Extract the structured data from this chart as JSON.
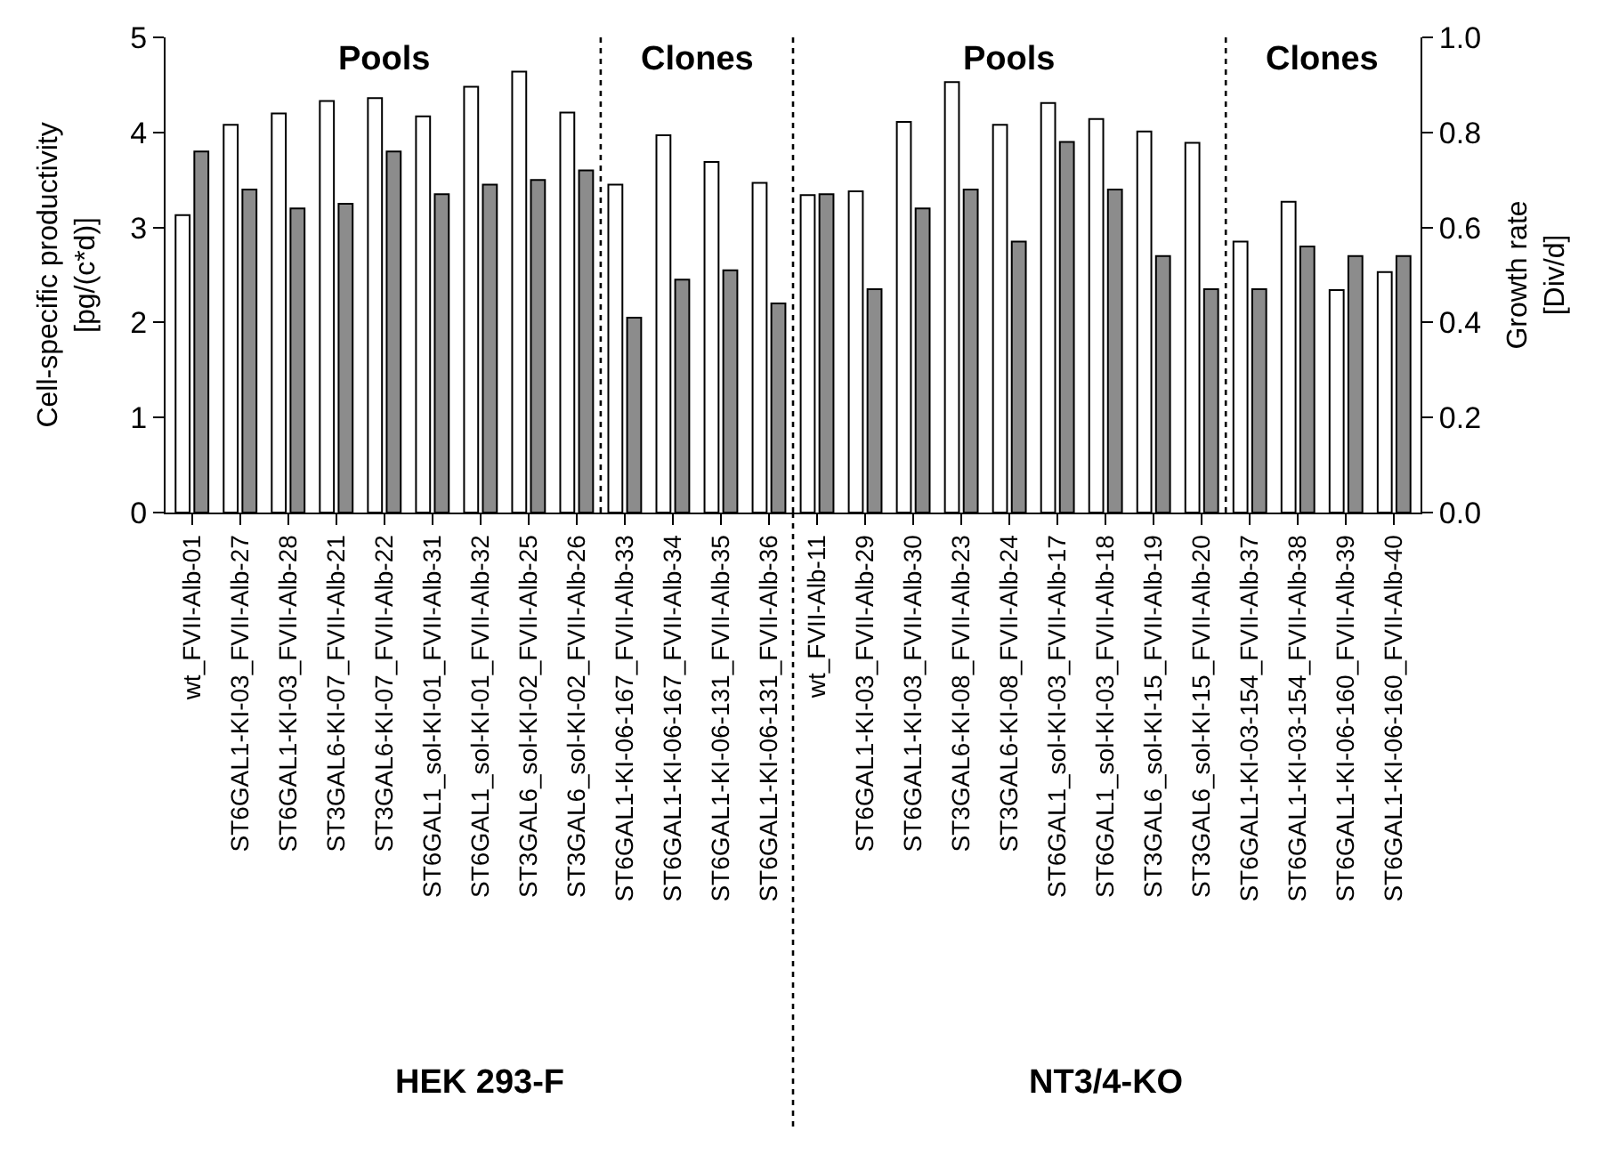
{
  "chart_data": {
    "type": "bar",
    "categories": [
      "wt_FVII-Alb-01",
      "ST6GAL1-KI-03_FVII-Alb-27",
      "ST6GAL1-KI-03_FVII-Alb-28",
      "ST3GAL6-KI-07_FVII-Alb-21",
      "ST3GAL6-KI-07_FVII-Alb-22",
      "ST6GAL1_sol-KI-01_FVII-Alb-31",
      "ST6GAL1_sol-KI-01_FVII-Alb-32",
      "ST3GAL6_sol-KI-02_FVII-Alb-25",
      "ST3GAL6_sol-KI-02_FVII-Alb-26",
      "ST6GAL1-KI-06-167_FVII-Alb-33",
      "ST6GAL1-KI-06-167_FVII-Alb-34",
      "ST6GAL1-KI-06-131_FVII-Alb-35",
      "ST6GAL1-KI-06-131_FVII-Alb-36",
      "wt_FVII-Alb-11",
      "ST6GAL1-KI-03_FVII-Alb-29",
      "ST6GAL1-KI-03_FVII-Alb-30",
      "ST3GAL6-KI-08_FVII-Alb-23",
      "ST3GAL6-KI-08_FVII-Alb-24",
      "ST6GAL1_sol-KI-03_FVII-Alb-17",
      "ST6GAL1_sol-KI-03_FVII-Alb-18",
      "ST3GAL6_sol-KI-15_FVII-Alb-19",
      "ST3GAL6_sol-KI-15_FVII-Alb-20",
      "ST6GAL1-KI-03-154_FVII-Alb-37",
      "ST6GAL1-KI-03-154_FVII-Alb-38",
      "ST6GAL1-KI-06-160_FVII-Alb-39",
      "ST6GAL1-KI-06-160_FVII-Alb-40"
    ],
    "series": [
      {
        "color": "#ffffff",
        "values": [
          3.13,
          4.08,
          4.2,
          4.33,
          4.36,
          4.17,
          4.48,
          4.64,
          4.21,
          3.45,
          3.97,
          3.69,
          3.47,
          3.34,
          3.38,
          4.11,
          4.53,
          4.08,
          4.31,
          4.14,
          4.01,
          3.89,
          2.85,
          3.27,
          2.34,
          2.53
        ]
      },
      {
        "color": "#8c8c8c",
        "axis": "y2",
        "values": [
          0.76,
          0.68,
          0.64,
          0.65,
          0.76,
          0.67,
          0.69,
          0.7,
          0.72,
          0.41,
          0.49,
          0.51,
          0.44,
          0.67,
          0.47,
          0.64,
          0.68,
          0.57,
          0.78,
          0.68,
          0.54,
          0.47,
          0.47,
          0.56,
          0.54,
          0.54
        ]
      }
    ],
    "ylabel": "Cell-specific productivity [pg/(c*d)]",
    "y2label": "Growth rate [Div/d]",
    "ylim": [
      0,
      5
    ],
    "yticks": [
      0,
      1,
      2,
      3,
      4,
      5
    ],
    "y2lim": [
      0,
      1.0
    ],
    "y2ticks": [
      {
        "value": 0,
        "label": "0.0"
      },
      {
        "value": 0.2,
        "label": "0.2"
      },
      {
        "value": 0.4,
        "label": "0.4"
      },
      {
        "value": 0.6,
        "label": "0.6"
      },
      {
        "value": 0.8,
        "label": "0.8"
      },
      {
        "value": 1.0,
        "label": "1.0"
      }
    ],
    "annotations": [
      "Pools",
      "Clones",
      "Pools",
      "Clones",
      "HEK 293-F",
      "NT3/4-KO"
    ]
  }
}
